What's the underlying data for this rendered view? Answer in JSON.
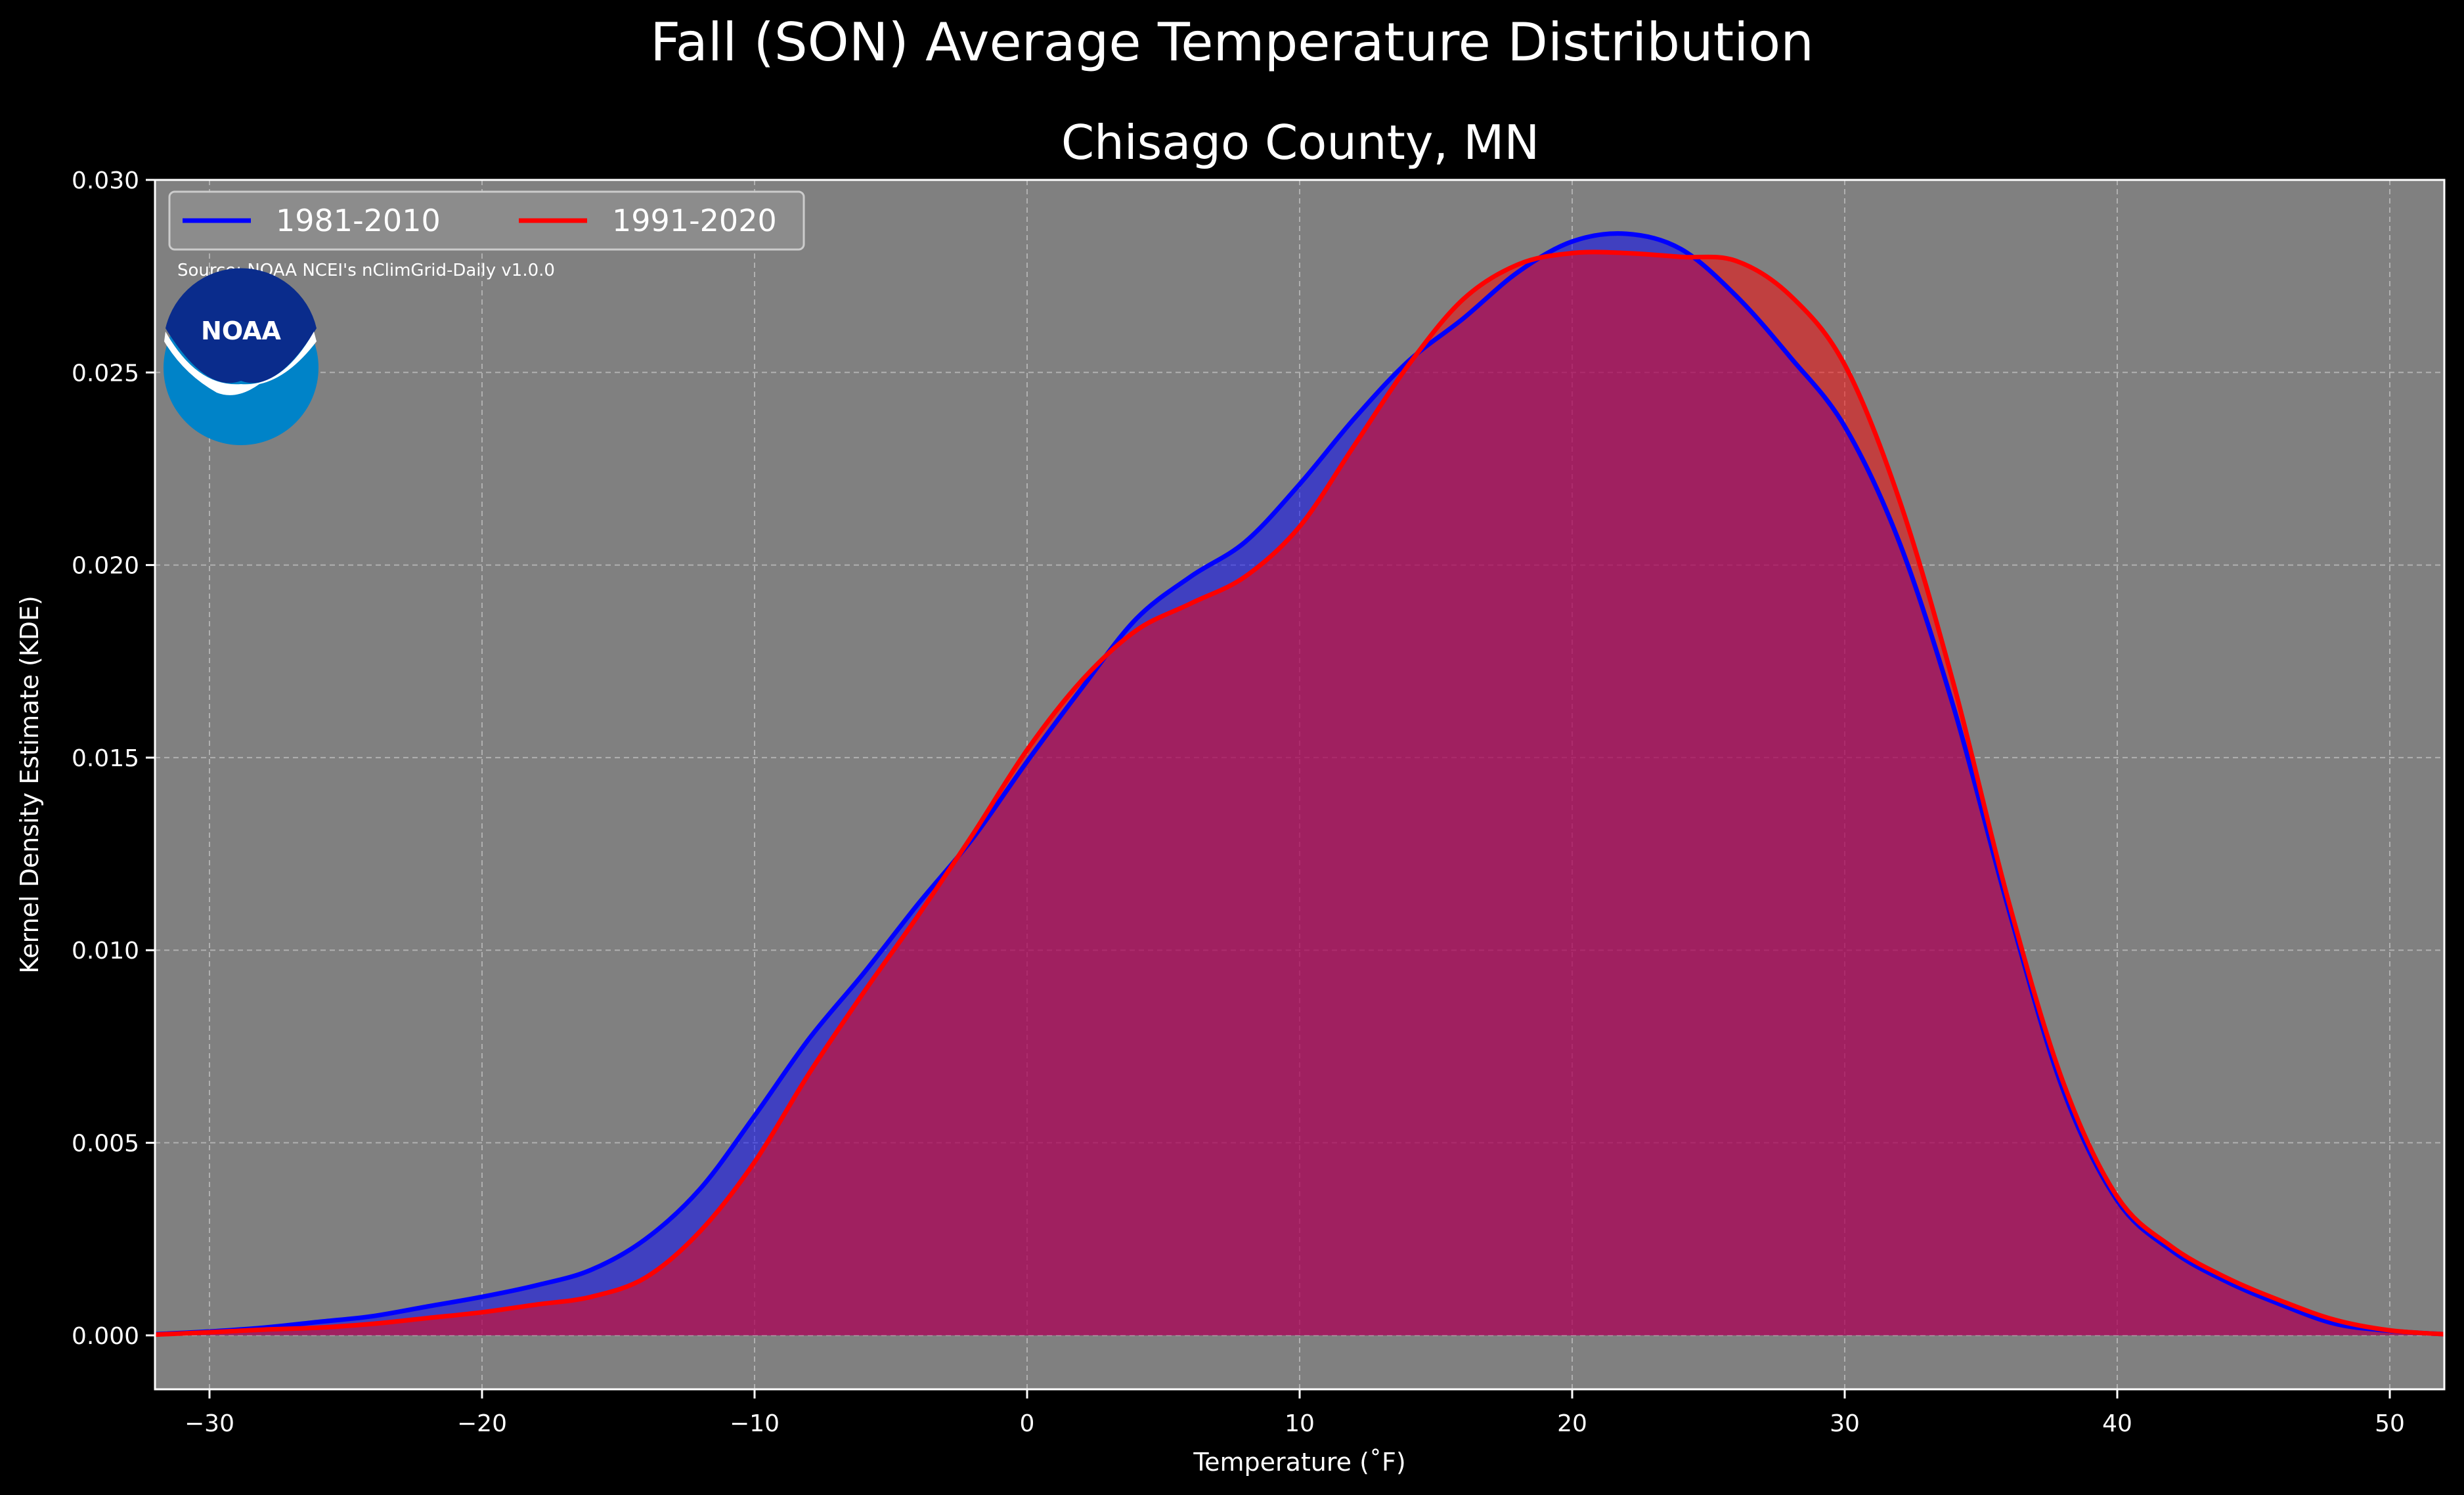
{
  "chart_data": {
    "type": "area",
    "title": "Fall (SON) Average Temperature Distribution",
    "subtitle": "Chisago County, MN",
    "xlabel": "Temperature ($^\\circ$F)",
    "xlabel_display": "Temperature (˚F)",
    "ylabel": "Kernel Density Estimate (KDE)",
    "xlim": [
      -32,
      52
    ],
    "ylim": [
      -0.0014,
      0.03
    ],
    "x_ticks": [
      -30,
      -20,
      -10,
      0,
      10,
      20,
      30,
      40,
      50
    ],
    "x_tick_labels": [
      "−30",
      "−20",
      "−10",
      "0",
      "10",
      "20",
      "30",
      "40",
      "50"
    ],
    "y_ticks": [
      0.0,
      0.005,
      0.01,
      0.015,
      0.02,
      0.025,
      0.03
    ],
    "y_tick_labels": [
      "0.000",
      "0.005",
      "0.010",
      "0.015",
      "0.020",
      "0.025",
      "0.030"
    ],
    "grid": true,
    "legend_position": "top-left",
    "source_note": "Source: NOAA NCEI's nClimGrid-Daily v1.0.0",
    "logo_text": "NOAA",
    "series": [
      {
        "name": "1981-2010",
        "color": "#0000ff",
        "fill": "rgba(0,0,255,0.5)",
        "x": [
          -32,
          -30,
          -28,
          -26,
          -24,
          -22,
          -20,
          -18,
          -16,
          -14,
          -12,
          -10,
          -8,
          -6,
          -4,
          -2,
          0,
          2,
          4,
          6,
          8,
          10,
          12,
          14,
          16,
          18,
          20,
          22,
          24,
          26,
          28,
          30,
          32,
          34,
          36,
          38,
          40,
          42,
          44,
          46,
          48,
          50,
          52
        ],
        "values": [
          3e-05,
          0.0001,
          0.0002,
          0.00035,
          0.0005,
          0.00075,
          0.001,
          0.0013,
          0.0017,
          0.0025,
          0.0038,
          0.0057,
          0.0077,
          0.0094,
          0.0112,
          0.0129,
          0.0149,
          0.0168,
          0.0186,
          0.0197,
          0.0206,
          0.0221,
          0.0238,
          0.0253,
          0.0264,
          0.0276,
          0.0284,
          0.0286,
          0.0282,
          0.027,
          0.0254,
          0.0236,
          0.0206,
          0.0163,
          0.0111,
          0.0064,
          0.0035,
          0.0022,
          0.0014,
          0.0008,
          0.0003,
          0.00012,
          3e-05
        ]
      },
      {
        "name": "1991-2020",
        "color": "#ff0000",
        "fill": "rgba(255,0,0,0.5)",
        "x": [
          -32,
          -30,
          -28,
          -26,
          -24,
          -22,
          -20,
          -18,
          -16,
          -14,
          -12,
          -10,
          -8,
          -6,
          -4,
          -2,
          0,
          2,
          4,
          6,
          8,
          10,
          12,
          14,
          16,
          18,
          20,
          22,
          24,
          26,
          28,
          30,
          32,
          34,
          36,
          38,
          40,
          42,
          44,
          46,
          48,
          50,
          52
        ],
        "values": [
          2e-05,
          8e-05,
          0.00015,
          0.0002,
          0.0003,
          0.00045,
          0.0006,
          0.0008,
          0.001,
          0.0015,
          0.0027,
          0.0045,
          0.0068,
          0.0089,
          0.0109,
          0.013,
          0.0152,
          0.017,
          0.0183,
          0.019,
          0.0197,
          0.021,
          0.0231,
          0.0252,
          0.0269,
          0.0278,
          0.0281,
          0.0281,
          0.028,
          0.0279,
          0.027,
          0.0252,
          0.0217,
          0.0169,
          0.0113,
          0.0066,
          0.0036,
          0.0023,
          0.0015,
          0.0009,
          0.0004,
          0.00013,
          3e-05
        ]
      }
    ]
  },
  "colors": {
    "background": "#000000",
    "plot_background": "#808080",
    "grid": "#b0b0b0",
    "text": "#ffffff",
    "logo_blue_dark": "#0a2c8c",
    "logo_blue_light": "#0083c8"
  }
}
